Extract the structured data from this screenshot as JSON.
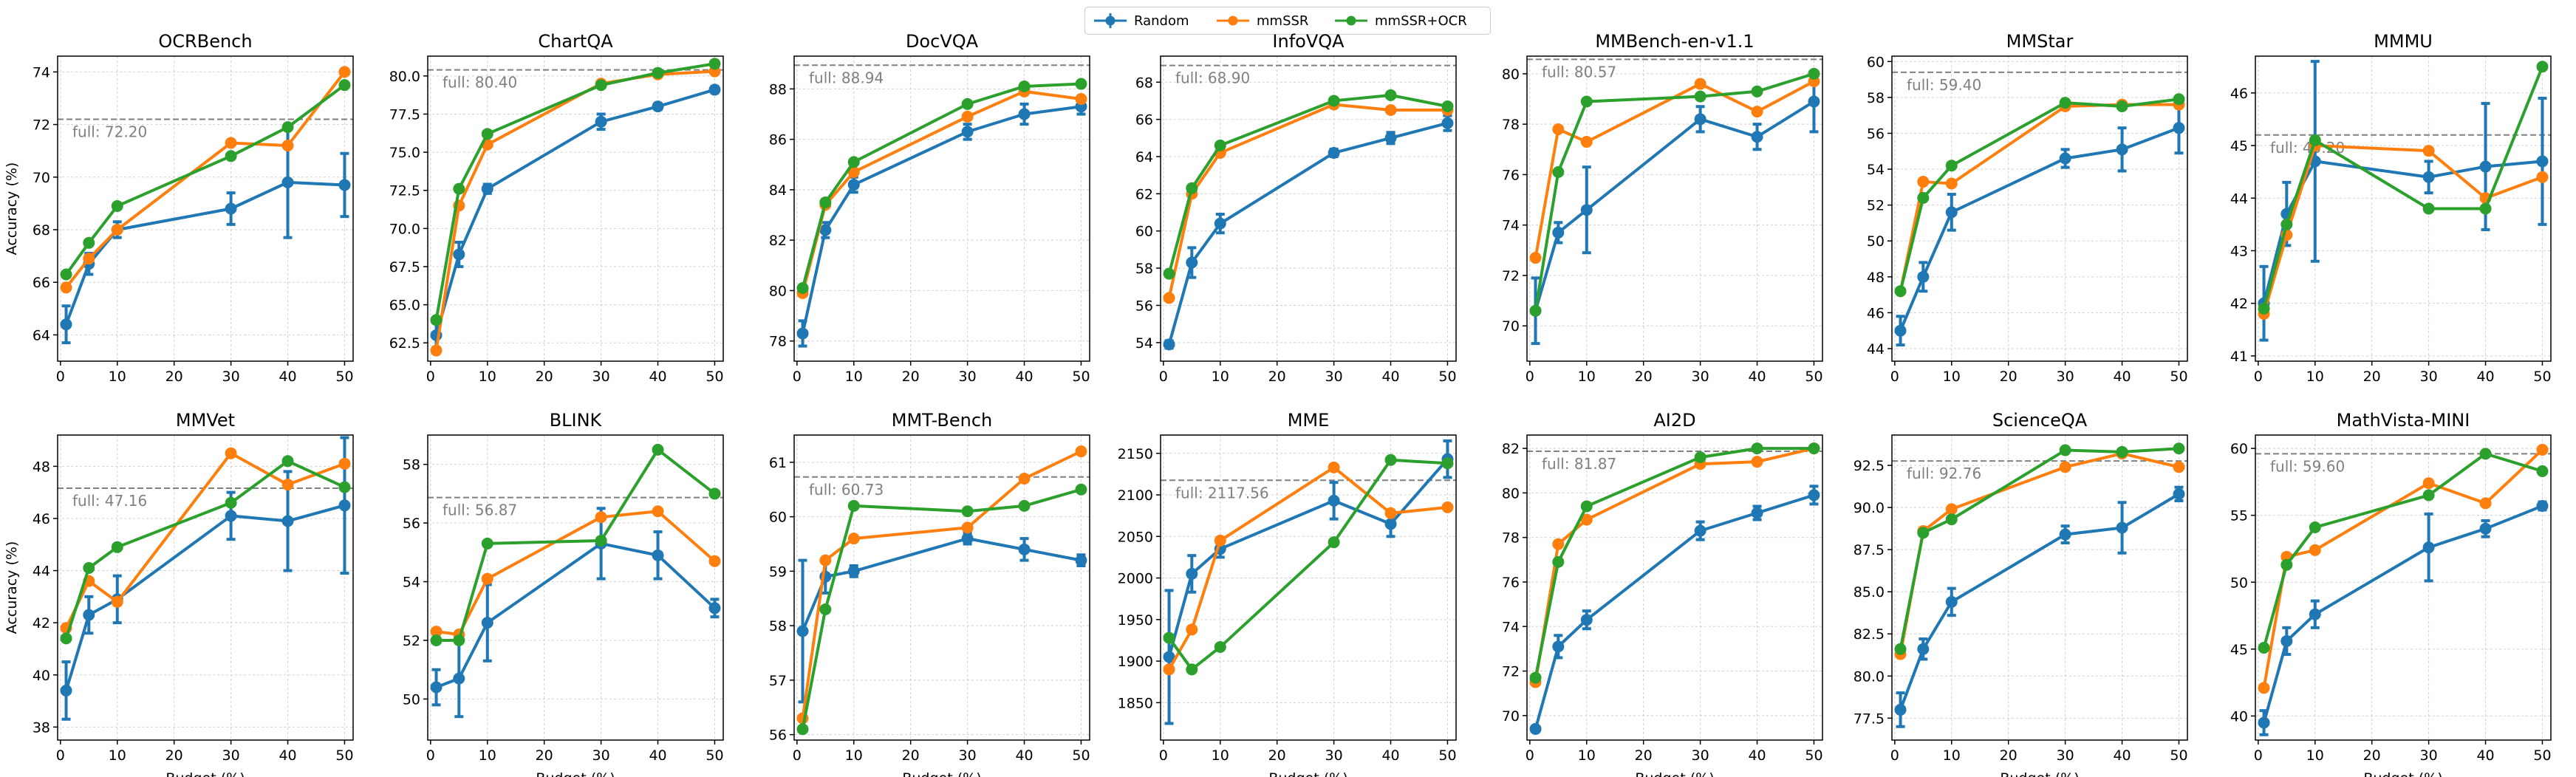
{
  "legend": {
    "entries": [
      {
        "name": "Random",
        "color": "#1f77b4"
      },
      {
        "name": "mmSSR",
        "color": "#ff7f0e"
      },
      {
        "name": "mmSSR+OCR",
        "color": "#2ca02c"
      }
    ]
  },
  "axis_labels": {
    "xlabel": "Budget (%)",
    "ylabel": "Accuracy (%)"
  },
  "colors": {
    "random": "#1f77b4",
    "mmssr": "#ff7f0e",
    "mmssr_ocr": "#2ca02c",
    "full_line": "#808080",
    "grid": "#d0d0d0"
  },
  "chart_data": [
    {
      "type": "line",
      "title": "OCRBench",
      "x": [
        1,
        5,
        10,
        30,
        40,
        50
      ],
      "ylim": [
        63,
        74.6
      ],
      "yticks": [
        64,
        66,
        68,
        70,
        72,
        74
      ],
      "full": 72.2,
      "full_label": "full: 72.20",
      "series": [
        {
          "name": "Random",
          "values": [
            64.4,
            66.7,
            68.0,
            68.8,
            69.8,
            69.7
          ],
          "err": [
            0.7,
            0.4,
            0.3,
            0.6,
            2.1,
            1.2
          ]
        },
        {
          "name": "mmSSR",
          "values": [
            65.8,
            66.9,
            68.0,
            71.3,
            71.2,
            74.0
          ]
        },
        {
          "name": "mmSSR+OCR",
          "values": [
            66.3,
            67.5,
            68.9,
            70.8,
            71.9,
            73.5
          ]
        }
      ]
    },
    {
      "type": "line",
      "title": "ChartQA",
      "x": [
        1,
        5,
        10,
        30,
        40,
        50
      ],
      "ylim": [
        61.3,
        81.3
      ],
      "yticks": [
        62.5,
        65.0,
        67.5,
        70.0,
        72.5,
        75.0,
        77.5,
        80.0
      ],
      "full": 80.4,
      "full_label": "full: 80.40",
      "series": [
        {
          "name": "Random",
          "values": [
            63.0,
            68.3,
            72.6,
            77.0,
            78.0,
            79.1
          ],
          "err": [
            0.8,
            0.8,
            0.3,
            0.5,
            0.2,
            0.2
          ]
        },
        {
          "name": "mmSSR",
          "values": [
            62.0,
            71.5,
            75.5,
            79.5,
            80.1,
            80.3
          ]
        },
        {
          "name": "mmSSR+OCR",
          "values": [
            64.0,
            72.6,
            76.2,
            79.4,
            80.2,
            80.8
          ]
        }
      ]
    },
    {
      "type": "line",
      "title": "DocVQA",
      "x": [
        1,
        5,
        10,
        30,
        40,
        50
      ],
      "ylim": [
        77.2,
        89.3
      ],
      "yticks": [
        78,
        80,
        82,
        84,
        86,
        88
      ],
      "full": 88.94,
      "full_label": "full: 88.94",
      "series": [
        {
          "name": "Random",
          "values": [
            78.3,
            82.4,
            84.2,
            86.3,
            87.0,
            87.3
          ],
          "err": [
            0.5,
            0.3,
            0.3,
            0.3,
            0.4,
            0.3
          ]
        },
        {
          "name": "mmSSR",
          "values": [
            79.9,
            83.4,
            84.7,
            86.9,
            87.9,
            87.6
          ]
        },
        {
          "name": "mmSSR+OCR",
          "values": [
            80.1,
            83.5,
            85.1,
            87.4,
            88.1,
            88.2
          ]
        }
      ]
    },
    {
      "type": "line",
      "title": "InfoVQA",
      "x": [
        1,
        5,
        10,
        30,
        40,
        50
      ],
      "ylim": [
        53.0,
        69.4
      ],
      "yticks": [
        54,
        56,
        58,
        60,
        62,
        64,
        66,
        68
      ],
      "full": 68.9,
      "full_label": "full: 68.90",
      "series": [
        {
          "name": "Random",
          "values": [
            53.9,
            58.3,
            60.4,
            64.2,
            65.0,
            65.8
          ],
          "err": [
            0.2,
            0.8,
            0.5,
            0.2,
            0.3,
            0.4
          ]
        },
        {
          "name": "mmSSR",
          "values": [
            56.4,
            62.0,
            64.2,
            66.8,
            66.5,
            66.5
          ]
        },
        {
          "name": "mmSSR+OCR",
          "values": [
            57.7,
            62.3,
            64.6,
            67.0,
            67.3,
            66.7
          ]
        }
      ]
    },
    {
      "type": "line",
      "title": "MMBench-en-v1.1",
      "x": [
        1,
        5,
        10,
        30,
        40,
        50
      ],
      "ylim": [
        68.6,
        80.7
      ],
      "yticks": [
        70,
        72,
        74,
        76,
        78,
        80
      ],
      "full": 80.57,
      "full_label": "full: 80.57",
      "series": [
        {
          "name": "Random",
          "values": [
            70.6,
            73.7,
            74.6,
            78.2,
            77.5,
            78.9
          ],
          "err": [
            1.3,
            0.4,
            1.7,
            0.5,
            0.5,
            1.2
          ]
        },
        {
          "name": "mmSSR",
          "values": [
            72.7,
            77.8,
            77.3,
            79.6,
            78.5,
            79.7
          ]
        },
        {
          "name": "mmSSR+OCR",
          "values": [
            70.6,
            76.1,
            78.9,
            79.1,
            79.3,
            80.0
          ]
        }
      ]
    },
    {
      "type": "line",
      "title": "MMStar",
      "x": [
        1,
        5,
        10,
        30,
        40,
        50
      ],
      "ylim": [
        43.3,
        60.3
      ],
      "yticks": [
        44,
        46,
        48,
        50,
        52,
        54,
        56,
        58,
        60
      ],
      "full": 59.4,
      "full_label": "full: 59.40",
      "series": [
        {
          "name": "Random",
          "values": [
            45.0,
            48.0,
            51.6,
            54.6,
            55.1,
            56.3
          ],
          "err": [
            0.8,
            0.8,
            1.0,
            0.5,
            1.2,
            1.4
          ]
        },
        {
          "name": "mmSSR",
          "values": [
            47.2,
            53.3,
            53.2,
            57.5,
            57.6,
            57.6
          ]
        },
        {
          "name": "mmSSR+OCR",
          "values": [
            47.2,
            52.4,
            54.2,
            57.7,
            57.5,
            57.9
          ]
        }
      ]
    },
    {
      "type": "line",
      "title": "MMMU",
      "x": [
        1,
        5,
        10,
        30,
        40,
        50
      ],
      "ylim": [
        40.9,
        46.7
      ],
      "yticks": [
        41,
        42,
        43,
        44,
        45,
        46
      ],
      "full": 45.2,
      "full_label": "full: 45.20",
      "series": [
        {
          "name": "Random",
          "values": [
            42.0,
            43.7,
            44.7,
            44.4,
            44.6,
            44.7
          ],
          "err": [
            0.7,
            0.6,
            1.9,
            0.3,
            1.2,
            1.2
          ]
        },
        {
          "name": "mmSSR",
          "values": [
            41.8,
            43.3,
            45.0,
            44.9,
            44.0,
            44.4
          ]
        },
        {
          "name": "mmSSR+OCR",
          "values": [
            41.9,
            43.5,
            45.1,
            43.8,
            43.8,
            46.5
          ]
        }
      ]
    },
    {
      "type": "line",
      "title": "MMVet",
      "x": [
        1,
        5,
        10,
        30,
        40,
        50
      ],
      "ylim": [
        37.5,
        49.2
      ],
      "yticks": [
        38,
        40,
        42,
        44,
        46,
        48
      ],
      "full": 47.16,
      "full_label": "full: 47.16",
      "series": [
        {
          "name": "Random",
          "values": [
            39.4,
            42.3,
            42.9,
            46.1,
            45.9,
            46.5
          ],
          "err": [
            1.1,
            0.7,
            0.9,
            0.9,
            1.9,
            2.6
          ]
        },
        {
          "name": "mmSSR",
          "values": [
            41.8,
            43.6,
            42.8,
            48.5,
            47.3,
            48.1
          ]
        },
        {
          "name": "mmSSR+OCR",
          "values": [
            41.4,
            44.1,
            44.9,
            46.6,
            48.2,
            47.2
          ]
        }
      ]
    },
    {
      "type": "line",
      "title": "BLINK",
      "x": [
        1,
        5,
        10,
        30,
        40,
        50
      ],
      "ylim": [
        48.6,
        59.0
      ],
      "yticks": [
        50,
        52,
        54,
        56,
        58
      ],
      "full": 56.87,
      "full_label": "full: 56.87",
      "series": [
        {
          "name": "Random",
          "values": [
            50.4,
            50.7,
            52.6,
            55.3,
            54.9,
            53.1
          ],
          "err": [
            0.6,
            1.3,
            1.3,
            1.2,
            0.8,
            0.3
          ]
        },
        {
          "name": "mmSSR",
          "values": [
            52.3,
            52.2,
            54.1,
            56.2,
            56.4,
            54.7
          ]
        },
        {
          "name": "mmSSR+OCR",
          "values": [
            52.0,
            52.0,
            55.3,
            55.4,
            58.5,
            57.0
          ]
        }
      ]
    },
    {
      "type": "line",
      "title": "MMT-Bench",
      "x": [
        1,
        5,
        10,
        30,
        40,
        50
      ],
      "ylim": [
        55.9,
        61.5
      ],
      "yticks": [
        56,
        57,
        58,
        59,
        60,
        61
      ],
      "full": 60.73,
      "full_label": "full: 60.73",
      "series": [
        {
          "name": "Random",
          "values": [
            57.9,
            58.9,
            59.0,
            59.6,
            59.4,
            59.2
          ],
          "err": [
            1.3,
            0.3,
            0.1,
            0.1,
            0.2,
            0.1
          ]
        },
        {
          "name": "mmSSR",
          "values": [
            56.3,
            59.2,
            59.6,
            59.8,
            60.7,
            61.2
          ]
        },
        {
          "name": "mmSSR+OCR",
          "values": [
            56.1,
            58.3,
            60.2,
            60.1,
            60.2,
            60.5
          ]
        }
      ]
    },
    {
      "type": "line",
      "title": "MME",
      "x": [
        1,
        5,
        10,
        30,
        40,
        50
      ],
      "ylim": [
        1805,
        2172
      ],
      "yticks": [
        1850,
        1900,
        1950,
        2000,
        2050,
        2100,
        2150
      ],
      "full": 2117.56,
      "full_label": "full: 2117.56",
      "series": [
        {
          "name": "Random",
          "values": [
            1905,
            2005,
            2035,
            2093,
            2065,
            2143
          ],
          "err": [
            80,
            22,
            10,
            22,
            15,
            22
          ]
        },
        {
          "name": "mmSSR",
          "values": [
            1890,
            1938,
            2045,
            2133,
            2078,
            2085
          ]
        },
        {
          "name": "mmSSR+OCR",
          "values": [
            1928,
            1890,
            1917,
            2043,
            2142,
            2138
          ]
        }
      ]
    },
    {
      "type": "line",
      "title": "AI2D",
      "x": [
        1,
        5,
        10,
        30,
        40,
        50
      ],
      "ylim": [
        68.9,
        82.6
      ],
      "yticks": [
        70,
        72,
        74,
        76,
        78,
        80,
        82
      ],
      "full": 81.87,
      "full_label": "full: 81.87",
      "series": [
        {
          "name": "Random",
          "values": [
            69.4,
            73.1,
            74.3,
            78.3,
            79.1,
            79.9
          ],
          "err": [
            0.1,
            0.5,
            0.4,
            0.4,
            0.3,
            0.4
          ]
        },
        {
          "name": "mmSSR",
          "values": [
            71.5,
            77.7,
            78.8,
            81.3,
            81.4,
            82.0
          ]
        },
        {
          "name": "mmSSR+OCR",
          "values": [
            71.7,
            76.9,
            79.4,
            81.6,
            82.0,
            82.0
          ]
        }
      ]
    },
    {
      "type": "line",
      "title": "ScienceQA",
      "x": [
        1,
        5,
        10,
        30,
        40,
        50
      ],
      "ylim": [
        76.2,
        94.3
      ],
      "yticks": [
        77.5,
        80.0,
        82.5,
        85.0,
        87.5,
        90.0,
        92.5
      ],
      "full": 92.76,
      "full_label": "full: 92.76",
      "series": [
        {
          "name": "Random",
          "values": [
            78.0,
            81.6,
            84.4,
            88.4,
            88.8,
            90.8
          ],
          "err": [
            1.0,
            0.6,
            0.8,
            0.5,
            1.5,
            0.4
          ]
        },
        {
          "name": "mmSSR",
          "values": [
            81.3,
            88.6,
            89.9,
            92.4,
            93.2,
            92.4
          ]
        },
        {
          "name": "mmSSR+OCR",
          "values": [
            81.6,
            88.5,
            89.3,
            93.4,
            93.3,
            93.5
          ]
        }
      ]
    },
    {
      "type": "line",
      "title": "MathVista-MINI",
      "x": [
        1,
        5,
        10,
        30,
        40,
        50
      ],
      "ylim": [
        38.2,
        61.0
      ],
      "yticks": [
        40,
        45,
        50,
        55,
        60
      ],
      "full": 59.6,
      "full_label": "full: 59.60",
      "series": [
        {
          "name": "Random",
          "values": [
            39.5,
            45.6,
            47.6,
            52.6,
            54.0,
            55.7
          ],
          "err": [
            0.9,
            1.0,
            1.0,
            2.5,
            0.6,
            0.3
          ]
        },
        {
          "name": "mmSSR",
          "values": [
            42.1,
            51.9,
            52.4,
            57.4,
            55.9,
            59.9
          ]
        },
        {
          "name": "mmSSR+OCR",
          "values": [
            45.1,
            51.3,
            54.1,
            56.5,
            59.6,
            58.3
          ]
        }
      ]
    }
  ]
}
